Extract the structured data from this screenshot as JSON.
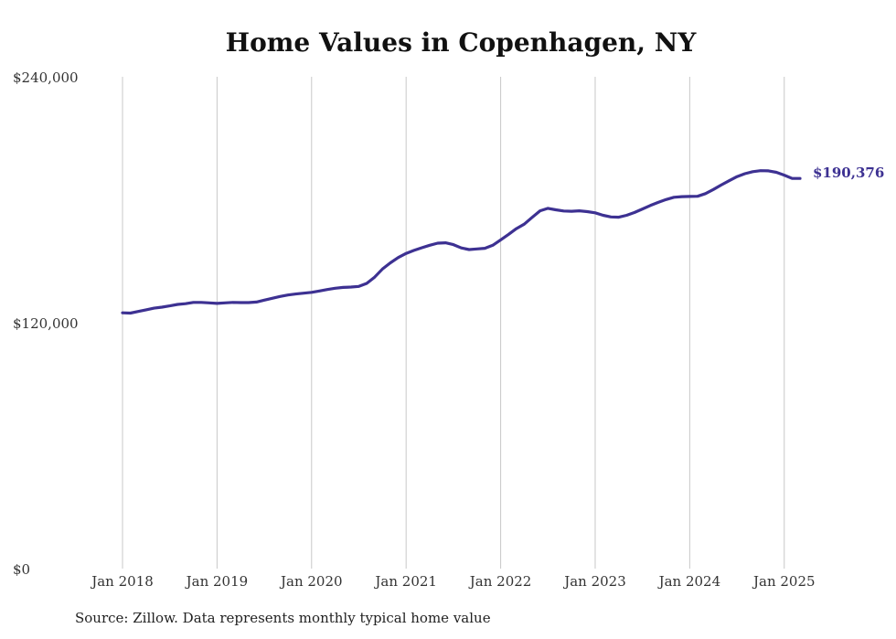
{
  "chart_data": {
    "type": "line",
    "title": "Home Values in Copenhagen, NY",
    "xlabel": "",
    "ylabel": "",
    "xlim": [
      "2018-01",
      "2025-03"
    ],
    "ylim": [
      0,
      240000
    ],
    "y_ticks": [
      0,
      120000,
      240000
    ],
    "y_tick_labels": [
      "$0",
      "$120,000",
      "$240,000"
    ],
    "x_tick_labels": [
      "Jan 2018",
      "Jan 2019",
      "Jan 2020",
      "Jan 2021",
      "Jan 2022",
      "Jan 2023",
      "Jan 2024",
      "Jan 2025"
    ],
    "grid": "vertical",
    "line_color": "#3d3192",
    "end_label": "$190,376",
    "series": [
      {
        "x": [
          "2018-01",
          "2018-02",
          "2018-03",
          "2018-04",
          "2018-05",
          "2018-06",
          "2018-07",
          "2018-08",
          "2018-09",
          "2018-10",
          "2018-11",
          "2018-12",
          "2019-01",
          "2019-02",
          "2019-03",
          "2019-04",
          "2019-05",
          "2019-06",
          "2019-07",
          "2019-08",
          "2019-09",
          "2019-10",
          "2019-11",
          "2019-12",
          "2020-01",
          "2020-02",
          "2020-03",
          "2020-04",
          "2020-05",
          "2020-06",
          "2020-07",
          "2020-08",
          "2020-09",
          "2020-10",
          "2020-11",
          "2020-12",
          "2021-01",
          "2021-02",
          "2021-03",
          "2021-04",
          "2021-05",
          "2021-06",
          "2021-07",
          "2021-08",
          "2021-09",
          "2021-10",
          "2021-11",
          "2021-12",
          "2022-01",
          "2022-02",
          "2022-03",
          "2022-04",
          "2022-05",
          "2022-06",
          "2022-07",
          "2022-08",
          "2022-09",
          "2022-10",
          "2022-11",
          "2022-12",
          "2023-01",
          "2023-02",
          "2023-03",
          "2023-04",
          "2023-05",
          "2023-06",
          "2023-07",
          "2023-08",
          "2023-09",
          "2023-10",
          "2023-11",
          "2023-12",
          "2024-01",
          "2024-02",
          "2024-03",
          "2024-04",
          "2024-05",
          "2024-06",
          "2024-07",
          "2024-08",
          "2024-09",
          "2024-10",
          "2024-11",
          "2024-12",
          "2025-01",
          "2025-02",
          "2025-03"
        ],
        "values": [
          124800,
          124700,
          125500,
          126300,
          127100,
          127600,
          128200,
          128900,
          129300,
          129900,
          129900,
          129700,
          129400,
          129700,
          129900,
          129800,
          129800,
          130100,
          131000,
          131900,
          132800,
          133500,
          134000,
          134400,
          134800,
          135500,
          136200,
          136800,
          137200,
          137400,
          137700,
          139200,
          142200,
          146200,
          149200,
          151800,
          153800,
          155300,
          156600,
          157800,
          158800,
          159000,
          158100,
          156500,
          155700,
          156000,
          156300,
          157800,
          160400,
          163100,
          165900,
          168100,
          171400,
          174600,
          175800,
          175100,
          174500,
          174400,
          174600,
          174200,
          173600,
          172400,
          171600,
          171500,
          172400,
          173800,
          175500,
          177200,
          178700,
          180100,
          181200,
          181500,
          181600,
          181700,
          183000,
          185000,
          187200,
          189300,
          191300,
          192700,
          193700,
          194200,
          194100,
          193400,
          192000,
          190376,
          190376
        ]
      }
    ]
  },
  "source_note": "Source: Zillow. Data represents monthly typical home value"
}
